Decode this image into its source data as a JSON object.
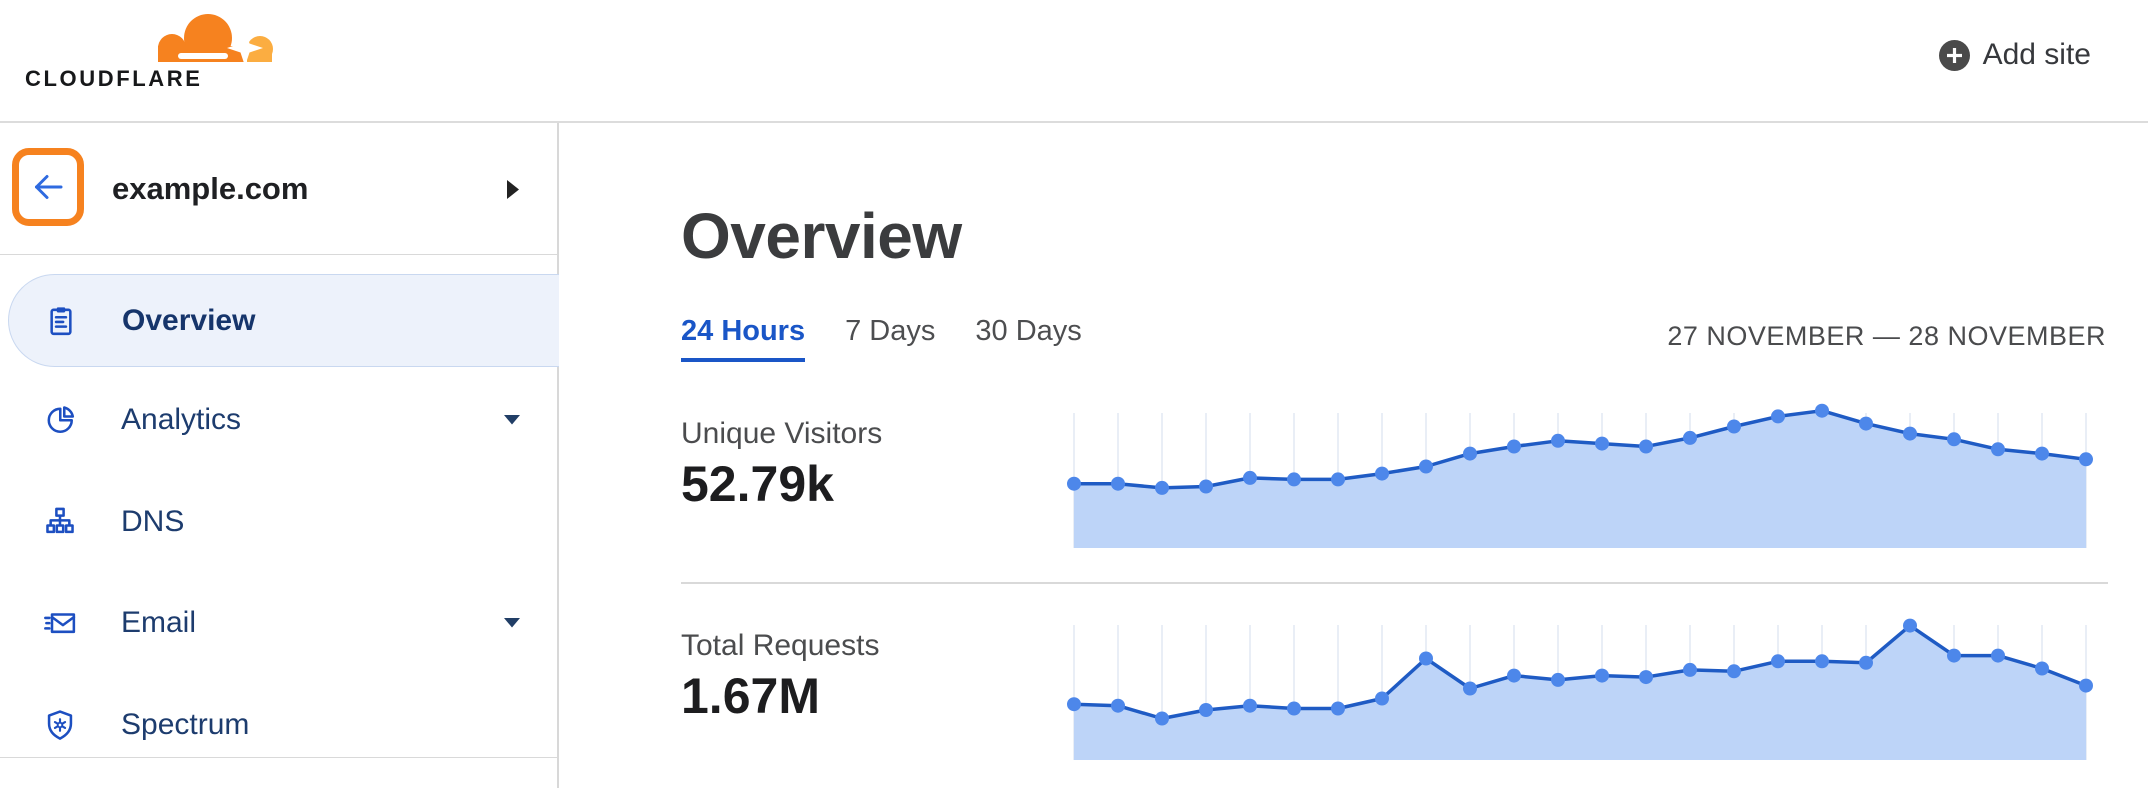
{
  "header": {
    "logo_text": "CLOUDFLARE",
    "add_site_label": "Add site"
  },
  "sidebar": {
    "site_name": "example.com",
    "items": [
      {
        "label": "Overview",
        "selected": true,
        "has_submenu": false
      },
      {
        "label": "Analytics",
        "selected": false,
        "has_submenu": true
      },
      {
        "label": "DNS",
        "selected": false,
        "has_submenu": false
      },
      {
        "label": "Email",
        "selected": false,
        "has_submenu": true
      },
      {
        "label": "Spectrum",
        "selected": false,
        "has_submenu": false
      }
    ]
  },
  "main": {
    "title": "Overview",
    "tabs": [
      {
        "label": "24 Hours",
        "active": true
      },
      {
        "label": "7 Days",
        "active": false
      },
      {
        "label": "30 Days",
        "active": false
      }
    ],
    "date_range": "27 NOVEMBER — 28 NOVEMBER",
    "metrics": [
      {
        "label": "Unique Visitors",
        "value": "52.79k"
      },
      {
        "label": "Total Requests",
        "value": "1.67M"
      }
    ]
  },
  "colors": {
    "accent_orange": "#f6821f",
    "logo_orange_light": "#fbad41",
    "link_blue": "#1a56c7",
    "icon_blue": "#1d4fc1",
    "nav_text": "#1d3c6e",
    "selected_bg": "#edf2fb",
    "selected_border": "#c9d8f0",
    "chart_line": "#1f5bc4",
    "chart_dot": "#4d87ea",
    "chart_fill": "#bdd4f8",
    "chart_grid": "#e9eef6",
    "back_arrow_blue": "#2e6ae0"
  },
  "chart_data": [
    {
      "type": "area",
      "title": "Unique Visitors",
      "period": "24 Hours",
      "total_displayed": "52.79k",
      "num_points": 24,
      "x_axis_labels": null,
      "y_axis_labels": null,
      "grid": "vertical-only",
      "legend": false,
      "values_relative_pct": [
        45,
        45,
        42,
        43,
        49,
        48,
        48,
        52,
        57,
        66,
        71,
        75,
        73,
        71,
        77,
        85,
        92,
        96,
        87,
        80,
        76,
        69,
        66,
        62
      ],
      "estimated_hourly_visitors": [
        1510,
        1510,
        1410,
        1440,
        1640,
        1610,
        1610,
        1740,
        1910,
        2210,
        2380,
        2510,
        2450,
        2380,
        2580,
        2850,
        3080,
        3220,
        2920,
        2680,
        2550,
        2310,
        2210,
        2080
      ]
    },
    {
      "type": "area",
      "title": "Total Requests",
      "period": "24 Hours",
      "total_displayed": "1.67M",
      "num_points": 24,
      "x_axis_labels": null,
      "y_axis_labels": null,
      "grid": "vertical-only",
      "legend": false,
      "values_relative_pct": [
        39,
        38,
        29,
        35,
        38,
        36,
        36,
        43,
        71,
        50,
        59,
        56,
        59,
        58,
        63,
        62,
        69,
        69,
        68,
        94,
        73,
        73,
        64,
        52
      ],
      "estimated_hourly_requests": [
        48800,
        47600,
        36300,
        43800,
        47600,
        45100,
        45100,
        53800,
        88900,
        62600,
        73900,
        70100,
        73900,
        72600,
        78900,
        77600,
        86400,
        86400,
        85100,
        117700,
        91400,
        91400,
        80100,
        65100
      ]
    }
  ]
}
